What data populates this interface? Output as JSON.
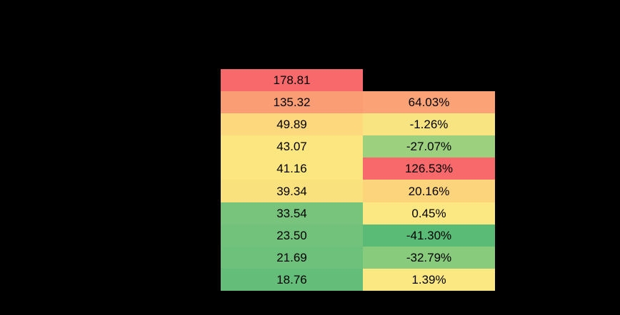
{
  "canvas": {
    "background_color": "#000000",
    "text_color": "#000000"
  },
  "table": {
    "rows": [
      {
        "value": "178.81",
        "value_bg": "#F8696B",
        "pct": "",
        "pct_bg": "transparent"
      },
      {
        "value": "135.32",
        "value_bg": "#FA9D75",
        "pct": "64.03%",
        "pct_bg": "#FBA376"
      },
      {
        "value": "49.89",
        "value_bg": "#FDD87C",
        "pct": "-1.26%",
        "pct_bg": "#F8E480"
      },
      {
        "value": "43.07",
        "value_bg": "#FBE67F",
        "pct": "-27.07%",
        "pct_bg": "#9CD07F"
      },
      {
        "value": "41.16",
        "value_bg": "#FBE67F",
        "pct": "126.53%",
        "pct_bg": "#F8696B"
      },
      {
        "value": "39.34",
        "value_bg": "#F9E27E",
        "pct": "20.16%",
        "pct_bg": "#FBD47B"
      },
      {
        "value": "33.54",
        "value_bg": "#79C47D",
        "pct": "0.45%",
        "pct_bg": "#FBE883"
      },
      {
        "value": "23.50",
        "value_bg": "#73C27C",
        "pct": "-41.30%",
        "pct_bg": "#59BB76"
      },
      {
        "value": "21.69",
        "value_bg": "#6EC17B",
        "pct": "-32.79%",
        "pct_bg": "#89CB7D"
      },
      {
        "value": "18.76",
        "value_bg": "#64BE7A",
        "pct": "1.39%",
        "pct_bg": "#FBE883"
      }
    ]
  },
  "chart_data": {
    "type": "heatmap",
    "title": "",
    "series": [
      {
        "name": "column-1-values",
        "values": [
          178.81,
          135.32,
          49.89,
          43.07,
          41.16,
          39.34,
          33.54,
          23.5,
          21.69,
          18.76
        ]
      },
      {
        "name": "column-2-percent",
        "values": [
          null,
          64.03,
          -1.26,
          -27.07,
          126.53,
          20.16,
          0.45,
          -41.3,
          -32.79,
          1.39
        ]
      }
    ],
    "color_scale": {
      "high": "#F8696B",
      "mid": "#FBE67F",
      "low": "#63BE7B"
    },
    "legend": "none",
    "grid": "none",
    "layout": "two-column conditional-format table on black background, first percent cell absent"
  }
}
